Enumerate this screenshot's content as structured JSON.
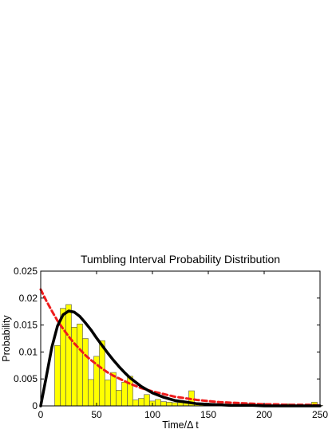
{
  "chart_data": {
    "type": "bar",
    "title": "Tumbling Interval Probability Distribution",
    "xlabel": "Time/Δ t",
    "ylabel": "Probability",
    "xlim": [
      0,
      250
    ],
    "ylim": [
      0,
      0.025
    ],
    "x_ticks": [
      "0",
      "50",
      "100",
      "150",
      "200",
      "250"
    ],
    "y_ticks": [
      "0",
      "0.005",
      "0.01",
      "0.015",
      "0.02",
      "0.025"
    ],
    "grid": false,
    "histogram": {
      "name": "",
      "color": "#ffff00",
      "bin_width": 5,
      "bin_centers": [
        15,
        20,
        25,
        30,
        35,
        40,
        45,
        50,
        55,
        60,
        65,
        70,
        75,
        80,
        85,
        90,
        95,
        100,
        105,
        110,
        115,
        120,
        125,
        130,
        135,
        140,
        145,
        150,
        155,
        160,
        165,
        170,
        175,
        180,
        185,
        190,
        195,
        200,
        205,
        210,
        215,
        220,
        225,
        230,
        235,
        240,
        245,
        250
      ],
      "values": [
        0.0112,
        0.0181,
        0.0188,
        0.0146,
        0.0152,
        0.0125,
        0.0049,
        0.0092,
        0.0121,
        0.0048,
        0.0062,
        0.0029,
        0.0044,
        0.0055,
        0.0011,
        0.0014,
        0.0021,
        0.0009,
        0.0012,
        0.0008,
        0.0007,
        0.0006,
        0.0006,
        0.0008,
        0.0028,
        0.0003,
        0.0003,
        0.0002,
        0.0002,
        0.0003,
        0.0002,
        0.0002,
        0.0001,
        0.0001,
        0.0004,
        0.0001,
        0.0001,
        0.0001,
        0.0001,
        0.0001,
        0.0001,
        0.0004,
        0.0001,
        0.0001,
        0.0001,
        0.0001,
        0.0007,
        0.0001
      ]
    },
    "curves": [
      {
        "name": "",
        "color": "#000000",
        "style": "solid",
        "x": [
          0,
          5,
          10,
          15,
          20,
          25,
          30,
          35,
          40,
          45,
          50,
          55,
          60,
          65,
          70,
          75,
          80,
          90,
          100,
          110,
          120,
          130,
          140,
          150,
          160,
          170,
          180,
          190,
          200,
          210,
          220,
          230,
          240,
          250
        ],
        "y": [
          0.0,
          0.0054,
          0.0109,
          0.0148,
          0.0169,
          0.0176,
          0.0174,
          0.0166,
          0.0154,
          0.0141,
          0.0126,
          0.0112,
          0.0098,
          0.0085,
          0.0073,
          0.0062,
          0.0052,
          0.0036,
          0.0024,
          0.0016,
          0.001,
          0.0007,
          0.0004,
          0.0003,
          0.0002,
          0.0001,
          0.0001,
          0.0001,
          0.0,
          0.0,
          0.0,
          0.0,
          0.0,
          0.0
        ]
      },
      {
        "name": "",
        "color": "#ee1c1c",
        "style": "dashed",
        "x": [
          0,
          5,
          10,
          15,
          20,
          25,
          30,
          35,
          40,
          45,
          50,
          55,
          60,
          65,
          70,
          75,
          80,
          90,
          100,
          110,
          120,
          130,
          140,
          150,
          160,
          170,
          180,
          190,
          200,
          210,
          220,
          230,
          240,
          250
        ],
        "y": [
          0.0216,
          0.0195,
          0.0176,
          0.0158,
          0.0143,
          0.0129,
          0.0116,
          0.0105,
          0.0094,
          0.0085,
          0.0077,
          0.0069,
          0.0062,
          0.0056,
          0.0051,
          0.0046,
          0.0041,
          0.0033,
          0.0027,
          0.0022,
          0.0017,
          0.0014,
          0.0011,
          0.0009,
          0.0007,
          0.0006,
          0.0005,
          0.0004,
          0.0003,
          0.0003,
          0.0002,
          0.0002,
          0.0002,
          0.0001
        ]
      }
    ]
  }
}
